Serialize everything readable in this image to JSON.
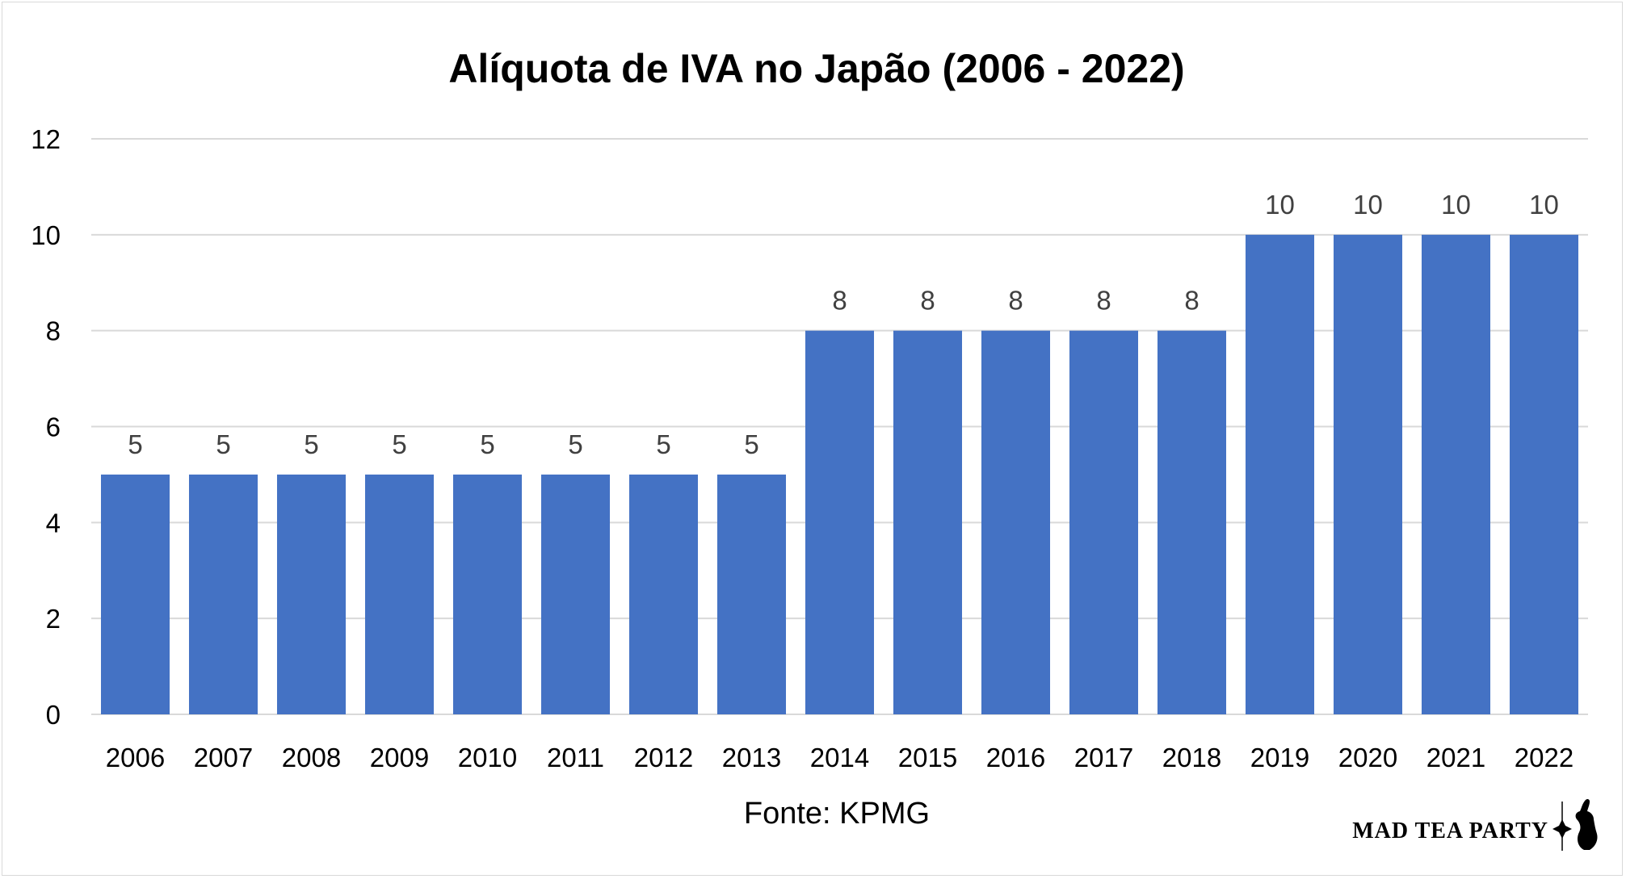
{
  "chart_data": {
    "type": "bar",
    "title": "Alíquota de IVA no Japão (2006 - 2022)",
    "xlabel": "",
    "ylabel": "",
    "categories": [
      "2006",
      "2007",
      "2008",
      "2009",
      "2010",
      "2011",
      "2012",
      "2013",
      "2014",
      "2015",
      "2016",
      "2017",
      "2018",
      "2019",
      "2020",
      "2021",
      "2022"
    ],
    "values": [
      5,
      5,
      5,
      5,
      5,
      5,
      5,
      5,
      8,
      8,
      8,
      8,
      8,
      10,
      10,
      10,
      10
    ],
    "ylim": [
      0,
      12
    ],
    "yticks": [
      "0",
      "2",
      "4",
      "6",
      "8",
      "10",
      "12"
    ],
    "grid": true,
    "legend": "none",
    "data_labels": true,
    "bar_color": "#4472C4",
    "grid_color": "#d9d9d9"
  },
  "source_text": "Fonte: KPMG",
  "brand_text": "MAD TEA PARTY"
}
